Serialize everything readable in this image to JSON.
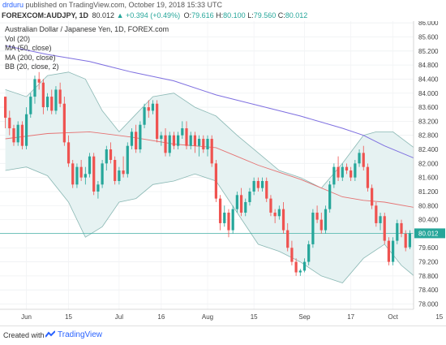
{
  "header": {
    "user": "drduru",
    "published_text": "published on",
    "site": "TradingView.com",
    "date": "October 19, 2018 15:33 UTC"
  },
  "symbol_bar": {
    "symbol": "FOREXCOM:AUDJPY, 1D",
    "last": "80.012",
    "change": "+0.394 (+0.49%)",
    "o": "79.616",
    "h": "80.100",
    "l": "79.560",
    "c": "80.012",
    "o_label": "O:",
    "h_label": "H:",
    "l_label": "L:",
    "c_label": "C:"
  },
  "legend": {
    "title": "Australian Dollar / Japanese Yen, 1D, FOREX.com",
    "items": [
      "Vol (20)",
      "MA (50, close)",
      "MA (200, close)",
      "BB (20, close, 2)"
    ]
  },
  "footer": {
    "created_with": "Created with",
    "brand": "TradingView"
  },
  "chart_data": {
    "type": "candlestick",
    "y_ticks": [
      "78.000",
      "78.400",
      "78.800",
      "79.200",
      "79.600",
      "80.000",
      "80.400",
      "80.800",
      "81.200",
      "81.600",
      "82.000",
      "82.400",
      "82.800",
      "83.200",
      "83.600",
      "84.000",
      "84.400",
      "84.800",
      "85.200",
      "85.600",
      "86.000"
    ],
    "ylim": [
      77.85,
      86.05
    ],
    "last_price_label": "80.012",
    "last_price": 80.012,
    "x_labels": [
      {
        "label": "Jun",
        "index": 5
      },
      {
        "label": "15",
        "index": 15
      },
      {
        "label": "Jul",
        "index": 27
      },
      {
        "label": "16",
        "index": 37
      },
      {
        "label": "Aug",
        "index": 48
      },
      {
        "label": "15",
        "index": 59
      },
      {
        "label": "Sep",
        "index": 71
      },
      {
        "label": "17",
        "index": 82
      },
      {
        "label": "Oct",
        "index": 92
      },
      {
        "label": "15",
        "index": 103
      }
    ],
    "colors": {
      "up": "#26a69a",
      "down": "#ef5350",
      "ma50": "#e57373",
      "ma200": "#7e6fe0",
      "bb": "#8ab8b4",
      "bb_fill": "#e6f2f2"
    },
    "candles": [
      [
        83.9,
        83.9,
        83.0,
        83.3
      ],
      [
        83.3,
        83.5,
        82.8,
        83.0
      ],
      [
        83.0,
        83.1,
        82.5,
        82.6
      ],
      [
        82.6,
        83.2,
        82.5,
        83.1
      ],
      [
        83.1,
        83.2,
        82.4,
        82.5
      ],
      [
        82.5,
        83.6,
        82.4,
        83.4
      ],
      [
        83.4,
        84.0,
        83.3,
        83.9
      ],
      [
        83.9,
        84.5,
        83.7,
        84.4
      ],
      [
        84.4,
        84.6,
        84.1,
        84.3
      ],
      [
        84.3,
        84.4,
        83.4,
        83.6
      ],
      [
        83.6,
        84.0,
        83.5,
        83.9
      ],
      [
        83.9,
        84.1,
        83.4,
        83.5
      ],
      [
        83.5,
        84.2,
        83.4,
        84.1
      ],
      [
        84.1,
        84.3,
        83.6,
        83.7
      ],
      [
        83.7,
        83.9,
        82.5,
        82.6
      ],
      [
        82.6,
        82.8,
        81.9,
        82.0
      ],
      [
        82.0,
        82.1,
        81.3,
        81.4
      ],
      [
        81.4,
        82.0,
        81.3,
        81.9
      ],
      [
        81.9,
        82.1,
        81.5,
        81.6
      ],
      [
        81.6,
        81.9,
        81.4,
        81.7
      ],
      [
        81.7,
        82.3,
        81.6,
        82.2
      ],
      [
        82.2,
        82.3,
        81.1,
        81.2
      ],
      [
        81.2,
        81.5,
        81.0,
        81.4
      ],
      [
        81.4,
        82.1,
        81.3,
        82.0
      ],
      [
        82.0,
        82.5,
        81.8,
        82.4
      ],
      [
        82.4,
        82.6,
        82.0,
        82.1
      ],
      [
        82.1,
        82.2,
        81.4,
        81.5
      ],
      [
        81.5,
        81.9,
        81.4,
        81.8
      ],
      [
        81.8,
        82.2,
        81.6,
        81.7
      ],
      [
        81.7,
        82.6,
        81.6,
        82.5
      ],
      [
        82.5,
        83.0,
        82.4,
        82.9
      ],
      [
        82.9,
        83.1,
        82.3,
        82.4
      ],
      [
        82.4,
        83.2,
        82.3,
        83.1
      ],
      [
        83.1,
        83.7,
        83.0,
        83.6
      ],
      [
        83.6,
        83.8,
        83.3,
        83.5
      ],
      [
        83.5,
        83.8,
        83.4,
        83.7
      ],
      [
        83.7,
        83.8,
        82.6,
        82.7
      ],
      [
        82.7,
        82.9,
        82.5,
        82.8
      ],
      [
        82.8,
        83.0,
        82.2,
        82.3
      ],
      [
        82.3,
        82.9,
        82.2,
        82.8
      ],
      [
        82.8,
        82.9,
        82.4,
        82.5
      ],
      [
        82.5,
        82.9,
        82.4,
        82.8
      ],
      [
        82.8,
        83.2,
        82.7,
        83.0
      ],
      [
        83.0,
        83.2,
        82.4,
        82.5
      ],
      [
        82.5,
        82.9,
        82.4,
        82.8
      ],
      [
        82.8,
        82.9,
        82.3,
        82.5
      ],
      [
        82.5,
        82.8,
        82.2,
        82.7
      ],
      [
        82.7,
        82.8,
        82.3,
        82.4
      ],
      [
        82.4,
        82.8,
        82.2,
        82.7
      ],
      [
        82.7,
        82.8,
        81.9,
        82.0
      ],
      [
        82.0,
        82.1,
        80.9,
        81.0
      ],
      [
        81.0,
        81.1,
        80.1,
        80.3
      ],
      [
        80.3,
        80.8,
        80.2,
        80.6
      ],
      [
        80.6,
        80.7,
        79.9,
        80.1
      ],
      [
        80.1,
        80.8,
        80.0,
        80.7
      ],
      [
        80.7,
        81.2,
        80.6,
        81.1
      ],
      [
        81.1,
        81.3,
        80.5,
        80.6
      ],
      [
        80.6,
        81.0,
        80.5,
        80.9
      ],
      [
        80.9,
        81.3,
        80.8,
        81.2
      ],
      [
        81.2,
        81.6,
        81.1,
        81.5
      ],
      [
        81.5,
        81.6,
        81.2,
        81.3
      ],
      [
        81.3,
        81.6,
        81.2,
        81.5
      ],
      [
        81.5,
        81.6,
        80.9,
        81.0
      ],
      [
        81.0,
        81.1,
        80.5,
        80.6
      ],
      [
        80.6,
        80.7,
        80.3,
        80.5
      ],
      [
        80.5,
        80.8,
        80.4,
        80.7
      ],
      [
        80.7,
        80.9,
        80.0,
        80.1
      ],
      [
        80.1,
        80.3,
        79.5,
        79.6
      ],
      [
        79.6,
        79.8,
        79.1,
        79.2
      ],
      [
        79.2,
        79.3,
        78.8,
        78.9
      ],
      [
        78.9,
        79.0,
        78.8,
        78.95
      ],
      [
        78.95,
        79.3,
        78.9,
        79.2
      ],
      [
        79.2,
        79.8,
        79.1,
        79.7
      ],
      [
        79.7,
        80.7,
        79.6,
        80.6
      ],
      [
        80.6,
        80.8,
        80.3,
        80.4
      ],
      [
        80.4,
        80.6,
        80.0,
        80.1
      ],
      [
        80.1,
        80.8,
        80.0,
        80.7
      ],
      [
        80.7,
        81.5,
        80.6,
        81.4
      ],
      [
        81.4,
        82.0,
        81.3,
        81.9
      ],
      [
        81.9,
        82.2,
        81.5,
        81.6
      ],
      [
        81.6,
        82.0,
        81.5,
        81.9
      ],
      [
        81.9,
        82.0,
        81.7,
        81.8
      ],
      [
        81.8,
        81.9,
        81.5,
        81.6
      ],
      [
        81.6,
        82.1,
        81.5,
        82.0
      ],
      [
        82.0,
        82.4,
        81.9,
        82.3
      ],
      [
        82.3,
        82.5,
        81.8,
        81.9
      ],
      [
        81.9,
        82.0,
        81.2,
        81.3
      ],
      [
        81.3,
        81.4,
        80.7,
        80.8
      ],
      [
        80.8,
        80.9,
        80.2,
        80.3
      ],
      [
        80.3,
        80.6,
        80.1,
        80.5
      ],
      [
        80.5,
        80.6,
        79.7,
        79.8
      ],
      [
        79.8,
        79.9,
        79.1,
        79.2
      ],
      [
        79.2,
        79.9,
        79.1,
        79.8
      ],
      [
        79.8,
        80.4,
        79.7,
        80.3
      ],
      [
        80.3,
        80.4,
        79.9,
        80.0
      ],
      [
        80.0,
        80.1,
        79.5,
        79.6
      ],
      [
        79.616,
        80.1,
        79.56,
        80.012
      ]
    ],
    "ma50": [
      [
        0,
        82.7
      ],
      [
        10,
        82.85
      ],
      [
        20,
        82.9
      ],
      [
        30,
        82.75
      ],
      [
        40,
        82.55
      ],
      [
        50,
        82.45
      ],
      [
        55,
        82.2
      ],
      [
        60,
        81.95
      ],
      [
        65,
        81.75
      ],
      [
        70,
        81.55
      ],
      [
        75,
        81.3
      ],
      [
        80,
        81.05
      ],
      [
        85,
        80.95
      ],
      [
        90,
        80.9
      ],
      [
        97,
        80.75
      ]
    ],
    "ma200": [
      [
        0,
        85.35
      ],
      [
        10,
        85.1
      ],
      [
        20,
        84.9
      ],
      [
        30,
        84.6
      ],
      [
        40,
        84.35
      ],
      [
        50,
        83.95
      ],
      [
        60,
        83.65
      ],
      [
        70,
        83.35
      ],
      [
        80,
        83.0
      ],
      [
        85,
        82.8
      ],
      [
        90,
        82.5
      ],
      [
        97,
        82.15
      ]
    ],
    "bb_upper": [
      [
        0,
        84.1
      ],
      [
        5,
        83.9
      ],
      [
        10,
        84.5
      ],
      [
        15,
        84.6
      ],
      [
        19,
        84.4
      ],
      [
        23,
        83.5
      ],
      [
        27,
        82.9
      ],
      [
        31,
        83.4
      ],
      [
        35,
        83.9
      ],
      [
        40,
        84.0
      ],
      [
        45,
        83.6
      ],
      [
        50,
        83.35
      ],
      [
        55,
        82.8
      ],
      [
        60,
        82.3
      ],
      [
        65,
        81.8
      ],
      [
        70,
        81.6
      ],
      [
        75,
        81.3
      ],
      [
        80,
        82.0
      ],
      [
        85,
        82.8
      ],
      [
        88,
        82.9
      ],
      [
        92,
        82.9
      ],
      [
        97,
        82.45
      ]
    ],
    "bb_lower": [
      [
        0,
        81.8
      ],
      [
        5,
        81.9
      ],
      [
        10,
        81.65
      ],
      [
        15,
        80.9
      ],
      [
        19,
        79.9
      ],
      [
        23,
        80.2
      ],
      [
        27,
        80.9
      ],
      [
        31,
        81.0
      ],
      [
        35,
        81.4
      ],
      [
        40,
        81.5
      ],
      [
        45,
        81.7
      ],
      [
        50,
        81.5
      ],
      [
        55,
        80.6
      ],
      [
        60,
        79.7
      ],
      [
        65,
        79.5
      ],
      [
        70,
        79.2
      ],
      [
        75,
        78.8
      ],
      [
        80,
        78.6
      ],
      [
        85,
        79.3
      ],
      [
        90,
        79.7
      ],
      [
        94,
        79.1
      ],
      [
        97,
        78.8
      ]
    ]
  }
}
